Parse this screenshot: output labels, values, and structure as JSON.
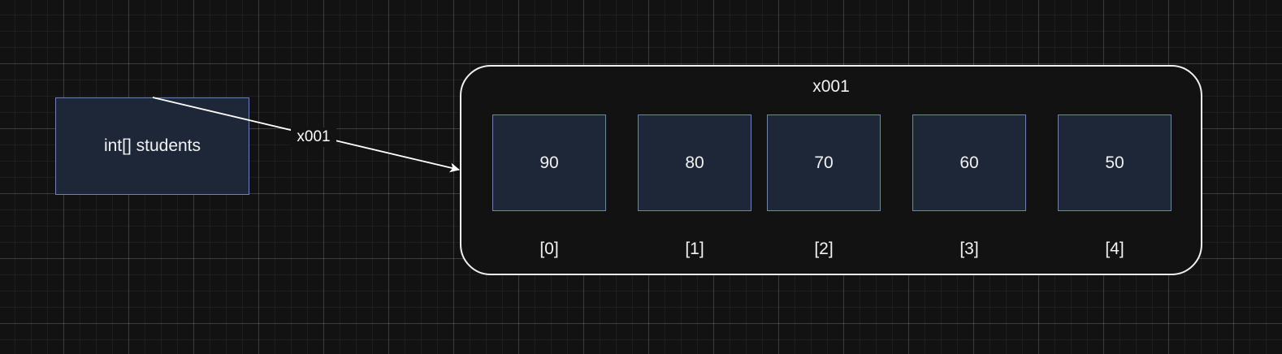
{
  "variable": {
    "label": "int[] students"
  },
  "reference_edge": {
    "label": "x001"
  },
  "array": {
    "title": "x001",
    "cells": [
      {
        "value": "90",
        "index": "[0]"
      },
      {
        "value": "80",
        "index": "[1]"
      },
      {
        "value": "70",
        "index": "[2]"
      },
      {
        "value": "60",
        "index": "[3]"
      },
      {
        "value": "50",
        "index": "[4]"
      }
    ]
  },
  "colors": {
    "background": "#121212",
    "box_fill": "#1e2738",
    "box_border": "#6c86b3",
    "container_border": "#f0f0f0",
    "text": "#f2f2f2"
  }
}
